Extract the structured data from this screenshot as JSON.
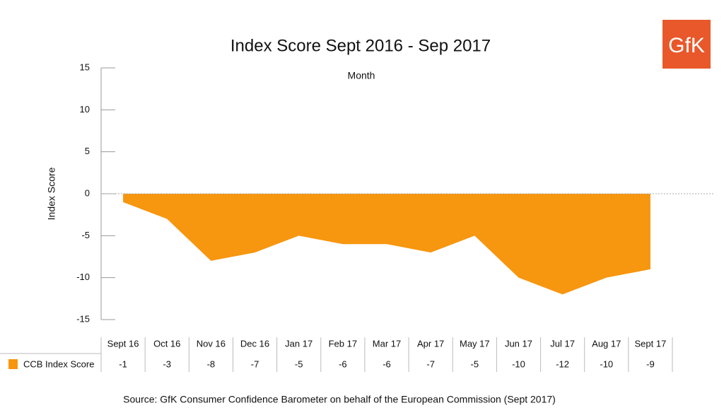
{
  "chart_data": {
    "type": "area",
    "title": "Index Score Sept 2016 - Sep 2017",
    "x_label": "Month",
    "y_label": "Index Score",
    "categories": [
      "Sept 16",
      "Oct 16",
      "Nov 16",
      "Dec 16",
      "Jan 17",
      "Feb 17",
      "Mar 17",
      "Apr 17",
      "May 17",
      "Jun 17",
      "Jul 17",
      "Aug 17",
      "Sept 17"
    ],
    "series": [
      {
        "name": "CCB Index Score",
        "color": "#f7960f",
        "values": [
          -1,
          -3,
          -8,
          -7,
          -5,
          -6,
          -6,
          -7,
          -5,
          -10,
          -12,
          -10,
          -9
        ]
      }
    ],
    "ylim": [
      -15,
      15
    ],
    "yticks": [
      -15,
      -10,
      -5,
      0,
      5,
      10,
      15
    ],
    "source": "Source: GfK Consumer Confidence Barometer on behalf of the European Commission (Sept 2017)",
    "logo": "GfK"
  }
}
